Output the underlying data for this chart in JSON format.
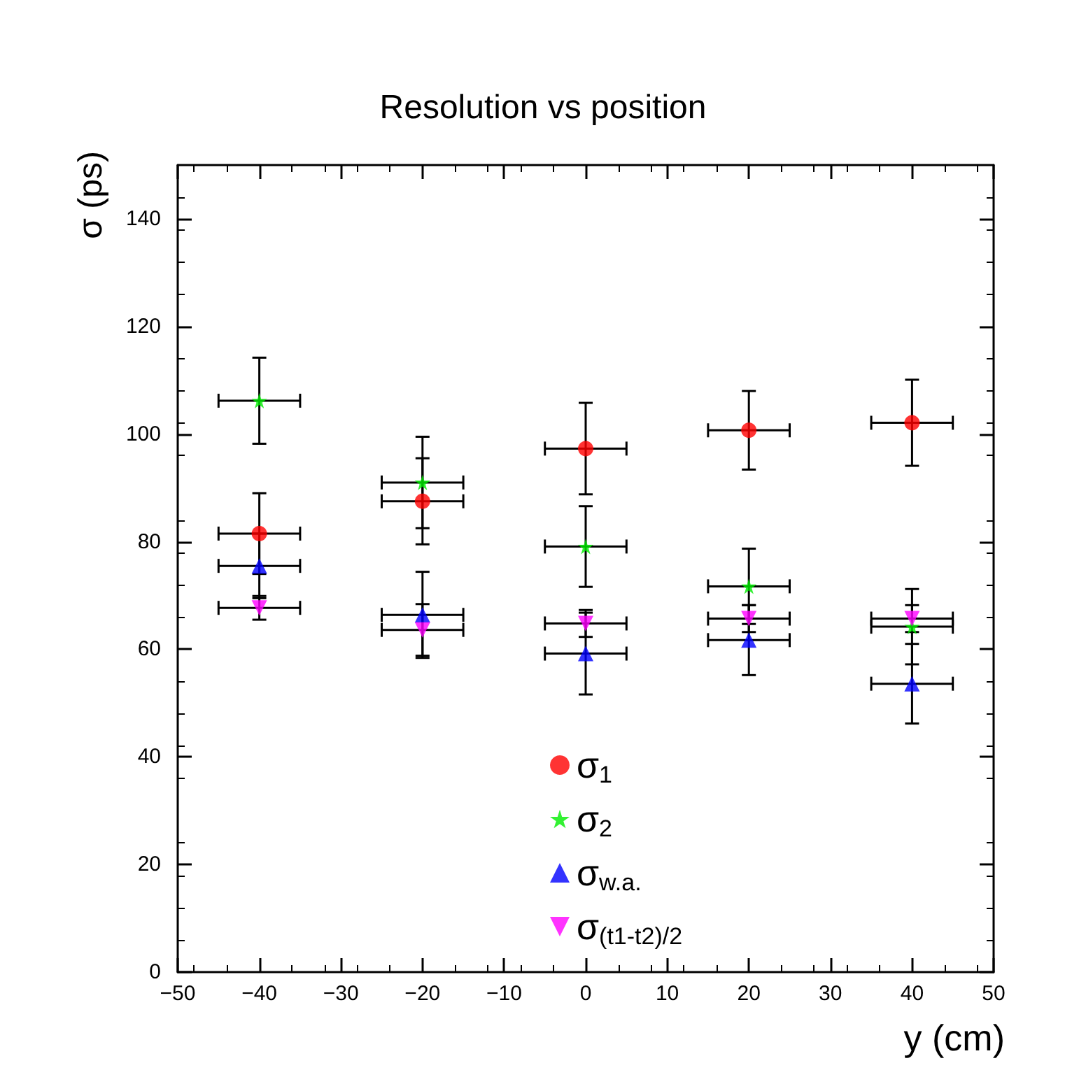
{
  "chart_data": {
    "type": "scatter",
    "title": "Resolution vs position",
    "xlabel": "y (cm)",
    "ylabel": "σ (ps)",
    "x": [
      -40,
      -20,
      0,
      20,
      40
    ],
    "series": [
      {
        "name": "σ$_{1}$",
        "color": "#ff0000",
        "marker": "circle",
        "values": [
          81.5,
          87.5,
          97.3,
          100.7,
          102.1
        ],
        "errors": [
          7.5,
          8,
          8.5,
          7.3,
          8
        ],
        "xerrors": [
          5,
          5,
          5,
          5,
          5
        ]
      },
      {
        "name": "σ$_{2}$",
        "color": "#00ee00",
        "marker": "star",
        "values": [
          106.2,
          91,
          79.1,
          71.7,
          64.2
        ],
        "errors": [
          8,
          8.5,
          7.5,
          7,
          7
        ],
        "xerrors": [
          5,
          5,
          5,
          5,
          5
        ]
      },
      {
        "name": "σ$_{w.a.}$",
        "color": "#0000ff",
        "marker": "triangle",
        "values": [
          75.5,
          66.4,
          59.2,
          61.7,
          53.6
        ],
        "errors": [
          6,
          8,
          7.6,
          6.5,
          7.4
        ],
        "xerrors": [
          5,
          5,
          5,
          5,
          5
        ]
      },
      {
        "name": "σ$_{(t1-t2)/2}$",
        "color": "#ff00ff",
        "marker": "triangle-down",
        "values": [
          67.7,
          63.6,
          64.8,
          65.7,
          65.7
        ],
        "errors": [
          2.2,
          4.8,
          2.5,
          2.5,
          2.5
        ],
        "xerrors": [
          5,
          5,
          5,
          5,
          5
        ]
      }
    ],
    "xlim": [
      -50,
      50
    ],
    "xticks": [
      -50,
      -40,
      -30,
      -20,
      -10,
      0,
      10,
      20,
      30,
      40,
      50
    ],
    "ylim": [
      0,
      150
    ],
    "yticks": [
      0,
      20,
      40,
      60,
      80,
      100,
      120,
      140
    ],
    "grid": false,
    "legend": "bottom"
  }
}
